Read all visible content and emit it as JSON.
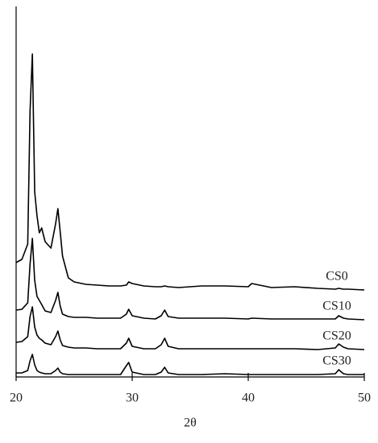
{
  "chart_data": {
    "type": "line",
    "xlabel": "2θ",
    "x": [
      20,
      20.5,
      21,
      21.2,
      21.4,
      21.6,
      21.8,
      22,
      22.2,
      22.5,
      23,
      23.4,
      23.6,
      23.8,
      24,
      24.5,
      25,
      26,
      27,
      28,
      29,
      29.5,
      29.7,
      30,
      31,
      32,
      32.5,
      32.8,
      33.1,
      34,
      36,
      38,
      40,
      40.3,
      42,
      44,
      46,
      47.5,
      47.8,
      48.2,
      48.6,
      50
    ],
    "series": [
      {
        "name": "CS0",
        "color": "#000000",
        "values": [
          142,
          146,
          165,
          330,
          401,
          230,
          200,
          179,
          185,
          168,
          160,
          190,
          209,
          180,
          150,
          123,
          118,
          115,
          114,
          113,
          113,
          114,
          118,
          116,
          113,
          112,
          112,
          113,
          112,
          111,
          113,
          113,
          112,
          116,
          111,
          112,
          110,
          109,
          110,
          109,
          109,
          108
        ]
      },
      {
        "name": "CS10",
        "color": "#000000",
        "values": [
          83,
          84,
          92,
          140,
          172,
          120,
          100,
          95,
          90,
          82,
          80,
          95,
          105,
          88,
          78,
          75,
          74,
          74,
          73,
          73,
          73,
          78,
          84,
          76,
          73,
          72,
          76,
          83,
          75,
          73,
          73,
          73,
          72,
          73,
          72,
          72,
          72,
          72,
          76,
          73,
          72,
          71
        ]
      },
      {
        "name": "CS20",
        "color": "#000000",
        "values": [
          43,
          44,
          50,
          75,
          87,
          62,
          52,
          48,
          46,
          42,
          40,
          50,
          57,
          46,
          39,
          37,
          36,
          36,
          35,
          35,
          35,
          42,
          48,
          38,
          35,
          35,
          40,
          48,
          38,
          35,
          35,
          35,
          35,
          35,
          35,
          35,
          34,
          36,
          41,
          37,
          35,
          34
        ]
      },
      {
        "name": "CS30",
        "color": "#000000",
        "values": [
          5,
          5,
          8,
          20,
          28,
          15,
          8,
          6,
          5,
          4,
          4,
          8,
          11,
          6,
          4,
          3,
          3,
          3,
          3,
          3,
          3,
          14,
          18,
          6,
          3,
          3,
          6,
          12,
          5,
          3,
          3,
          4,
          3,
          3,
          3,
          3,
          3,
          4,
          9,
          4,
          3,
          3
        ]
      }
    ],
    "xlim": [
      20,
      50
    ],
    "xticks": [
      20,
      30,
      40,
      50
    ],
    "ylim": [
      0,
      460
    ]
  }
}
